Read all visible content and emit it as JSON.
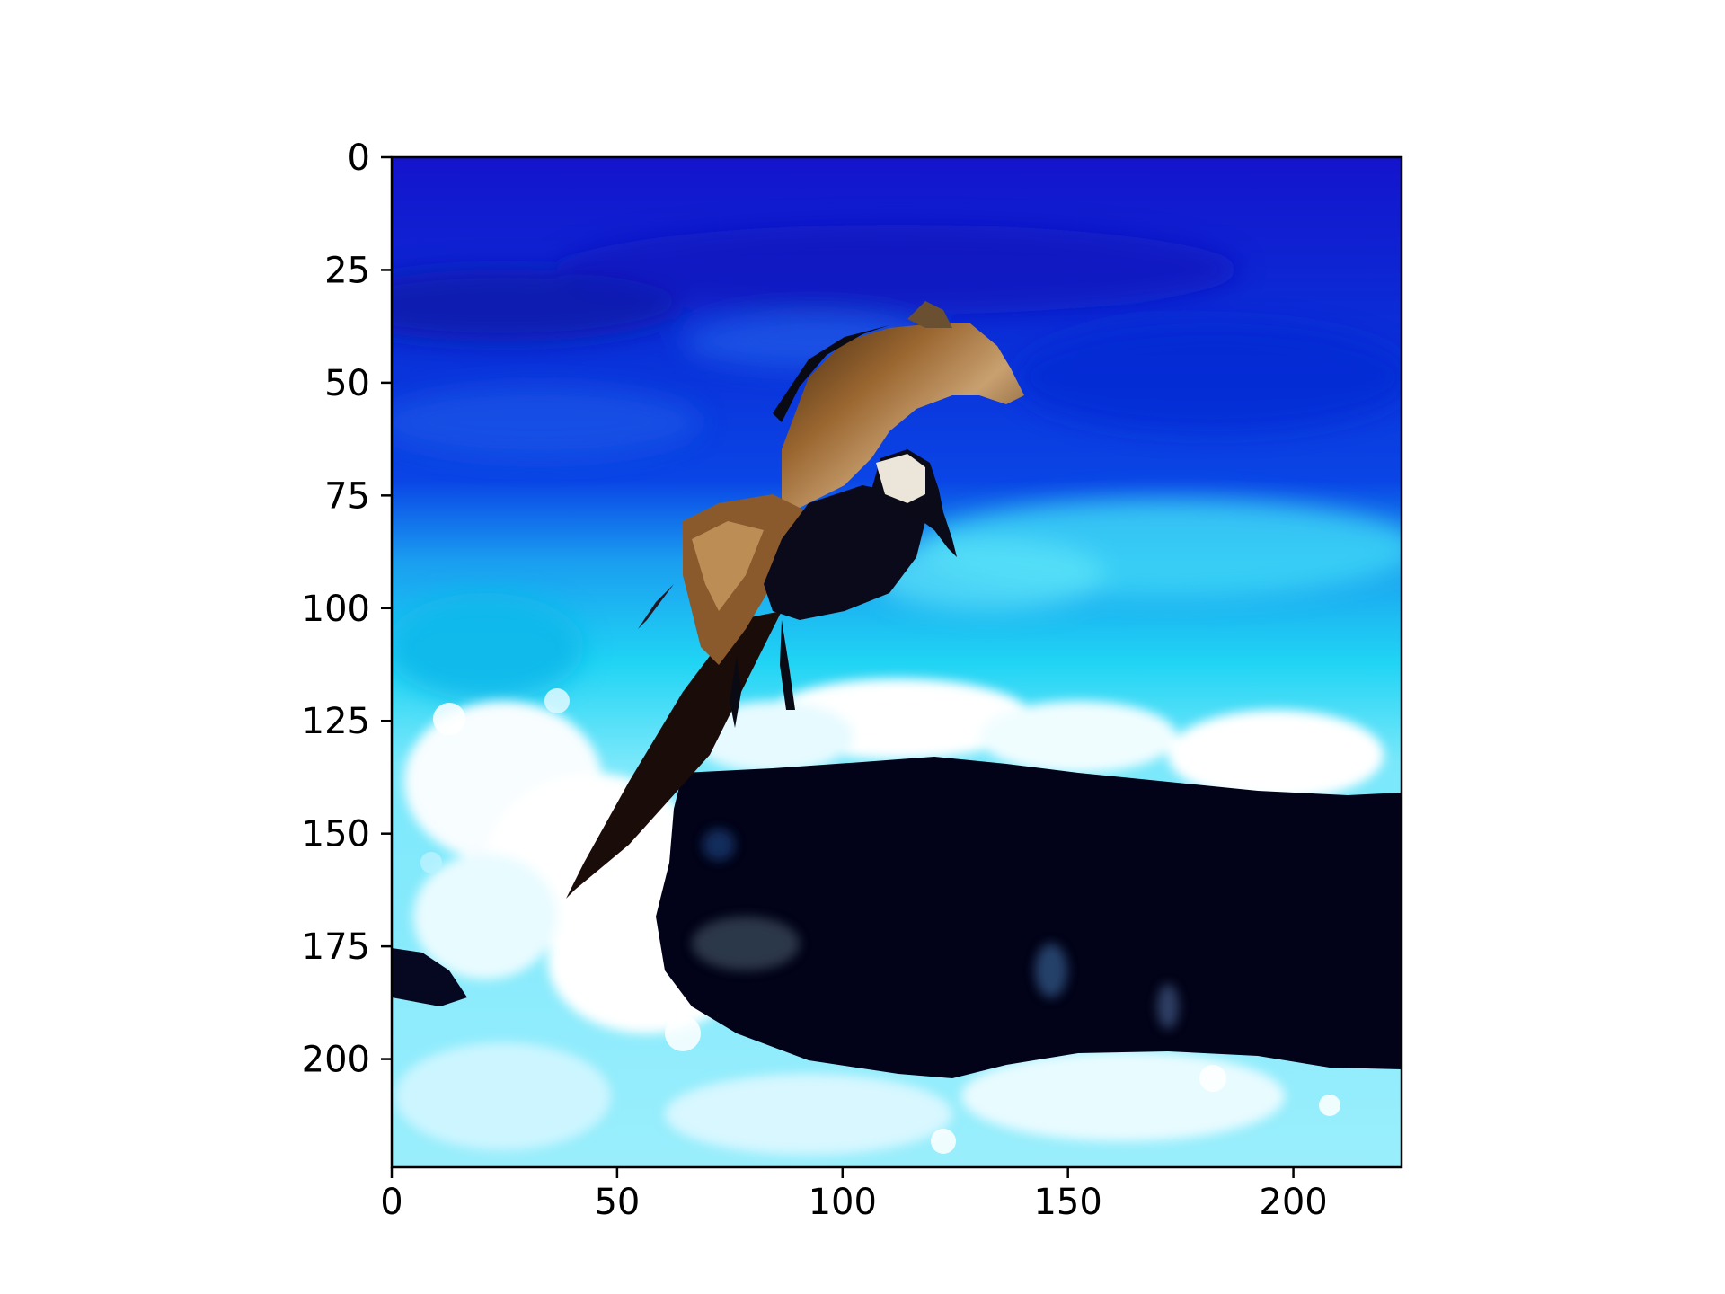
{
  "image_axes": {
    "x_ticks": [
      {
        "value": 0,
        "label": "0"
      },
      {
        "value": 50,
        "label": "50"
      },
      {
        "value": 100,
        "label": "100"
      },
      {
        "value": 150,
        "label": "150"
      },
      {
        "value": 200,
        "label": "200"
      }
    ],
    "y_ticks": [
      {
        "value": 0,
        "label": "0"
      },
      {
        "value": 25,
        "label": "25"
      },
      {
        "value": 50,
        "label": "50"
      },
      {
        "value": 75,
        "label": "75"
      },
      {
        "value": 100,
        "label": "100"
      },
      {
        "value": 125,
        "label": "125"
      },
      {
        "value": 150,
        "label": "150"
      },
      {
        "value": 175,
        "label": "175"
      },
      {
        "value": 200,
        "label": "200"
      }
    ],
    "x_range": [
      0,
      224
    ],
    "y_range": [
      0,
      224
    ],
    "y_inverted": true
  },
  "colors": {
    "sky_top": "#1414cc",
    "sky_mid": "#0a40e8",
    "cyan": "#1ad0f0",
    "white_foam": "#f2fbff",
    "rock": "#020318",
    "bird_dark": "#0a0a1a",
    "bird_brown": "#8a5a2c",
    "bird_light": "#e8e0d0",
    "frame": "#000000"
  },
  "icons": {
    "subject": "bird-in-flight"
  }
}
